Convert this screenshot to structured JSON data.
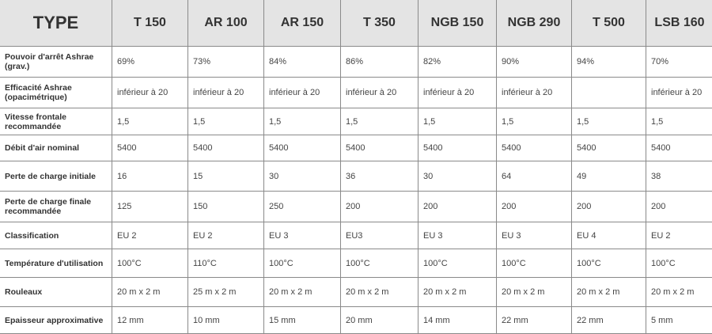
{
  "header": [
    "TYPE",
    "T 150",
    "AR 100",
    "AR 150",
    "T 350",
    "NGB 150",
    "NGB 290",
    "T 500",
    "LSB 160"
  ],
  "rows": [
    {
      "label": "Pouvoir d'arrêt Ashrae (grav.)",
      "values": [
        "69%",
        "73%",
        "84%",
        "86%",
        "82%",
        "90%",
        "94%",
        "70%"
      ]
    },
    {
      "label": "Efficacité Ashrae (opacimétrique)",
      "values": [
        "inférieur à 20",
        "inférieur à 20",
        "inférieur à 20",
        "inférieur à 20",
        "inférieur à 20",
        "inférieur à 20",
        "",
        "inférieur à 20"
      ]
    },
    {
      "label": "Vitesse frontale recommandée",
      "values": [
        "1,5",
        "1,5",
        "1,5",
        "1,5",
        "1,5",
        "1,5",
        "1,5",
        "1,5"
      ]
    },
    {
      "label": "Débit d'air nominal",
      "values": [
        "5400",
        "5400",
        "5400",
        "5400",
        "5400",
        "5400",
        "5400",
        "5400"
      ]
    },
    {
      "label": "Perte de charge initiale",
      "values": [
        "16",
        "15",
        "30",
        "36",
        "30",
        "64",
        "49",
        "38"
      ]
    },
    {
      "label": "Perte de charge finale recommandée",
      "values": [
        "125",
        "150",
        "250",
        "200",
        "200",
        "200",
        "200",
        "200"
      ]
    },
    {
      "label": "Classification",
      "values": [
        "EU 2",
        "EU 2",
        "EU 3",
        "EU3",
        "EU 3",
        "EU 3",
        "EU 4",
        "EU 2"
      ]
    },
    {
      "label": "Température d'utilisation",
      "values": [
        "100°C",
        "110°C",
        "100°C",
        "100°C",
        "100°C",
        "100°C",
        "100°C",
        "100°C"
      ]
    },
    {
      "label": "Rouleaux",
      "values": [
        "20 m x 2 m",
        "25 m x 2 m",
        "20 m x 2 m",
        "20 m x 2 m",
        "20 m x 2 m",
        "20 m x 2 m",
        "20 m x 2 m",
        "20 m x 2 m"
      ]
    },
    {
      "label": "Epaisseur approximative",
      "values": [
        "12 mm",
        "10 mm",
        "15 mm",
        "20 mm",
        "14 mm",
        "22 mm",
        "22 mm",
        "5 mm"
      ]
    }
  ]
}
